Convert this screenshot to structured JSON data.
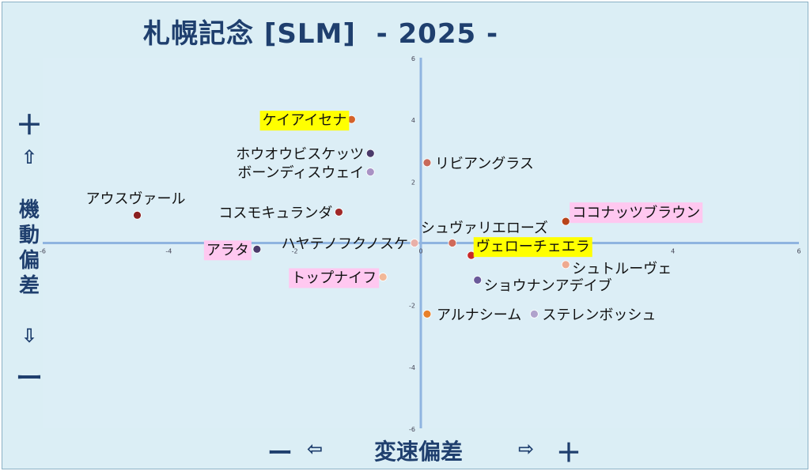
{
  "title": "札幌記念 [SLM]  - 2025 -",
  "y_axis": {
    "plus": "＋",
    "up_arrow": "⇧",
    "title": "機動偏差",
    "down_arrow": "⇩",
    "minus": "ー"
  },
  "x_axis": {
    "minus": "ー",
    "left_arrow": "⇦",
    "title": "変速偏差",
    "right_arrow": "⇨",
    "plus": "＋"
  },
  "chart_data": {
    "type": "scatter",
    "title": "札幌記念 [SLM]  - 2025 -",
    "xlabel": "変速偏差",
    "ylabel": "機動偏差",
    "xlim": [
      -6,
      6
    ],
    "ylim": [
      -6,
      6
    ],
    "xticks": [
      "-6",
      "-4",
      "-2",
      "0",
      "2",
      "4",
      "6"
    ],
    "yticks": [
      "6",
      "4",
      "2",
      "0",
      "-2",
      "-4",
      "-6"
    ],
    "grid": false,
    "points": [
      {
        "name": "ケイアイセナ",
        "x": -1.1,
        "y": 4.0,
        "color": "#d4622a",
        "highlight": "#ffff00"
      },
      {
        "name": "ホウオウビスケッツ",
        "x": -0.8,
        "y": 2.9,
        "color": "#4a3a6a",
        "highlight": ""
      },
      {
        "name": "ボーンディスウェイ",
        "x": -0.8,
        "y": 2.3,
        "color": "#a892c4",
        "highlight": ""
      },
      {
        "name": "リビアングラス",
        "x": 0.1,
        "y": 2.6,
        "color": "#c86a5a",
        "highlight": ""
      },
      {
        "name": "アウスヴァール",
        "x": -4.5,
        "y": 0.9,
        "color": "#8a2020",
        "highlight": ""
      },
      {
        "name": "コスモキュランダ",
        "x": -1.3,
        "y": 1.0,
        "color": "#a02828",
        "highlight": ""
      },
      {
        "name": "ココナッツブラウン",
        "x": 2.3,
        "y": 0.7,
        "color": "#b8441a",
        "highlight": "#ffc8f0"
      },
      {
        "name": "シュヴァリエローズ",
        "x": 0.5,
        "y": 0.0,
        "color": "#d06a5a",
        "highlight": ""
      },
      {
        "name": "ハヤテノフクノスケ",
        "x": -0.1,
        "y": 0.0,
        "color": "#e8b0a8",
        "highlight": ""
      },
      {
        "name": "ヴェローチェエラ",
        "x": 0.8,
        "y": -0.4,
        "color": "#c82828",
        "highlight": "#ffff00"
      },
      {
        "name": "アラタ",
        "x": -2.6,
        "y": -0.2,
        "color": "#4a3a6a",
        "highlight": "#ffc8f0"
      },
      {
        "name": "シュトルーヴェ",
        "x": 2.3,
        "y": -0.7,
        "color": "#eeaa90",
        "highlight": ""
      },
      {
        "name": "トップナイフ",
        "x": -0.6,
        "y": -1.1,
        "color": "#f2b898",
        "highlight": "#ffc8f0"
      },
      {
        "name": "ショウナンアデイブ",
        "x": 0.9,
        "y": -1.2,
        "color": "#6a5a9a",
        "highlight": ""
      },
      {
        "name": "アルナシーム",
        "x": 0.1,
        "y": -2.3,
        "color": "#e8802a",
        "highlight": ""
      },
      {
        "name": "ステレンボッシュ",
        "x": 1.8,
        "y": -2.3,
        "color": "#b0a2cc",
        "highlight": ""
      }
    ]
  }
}
